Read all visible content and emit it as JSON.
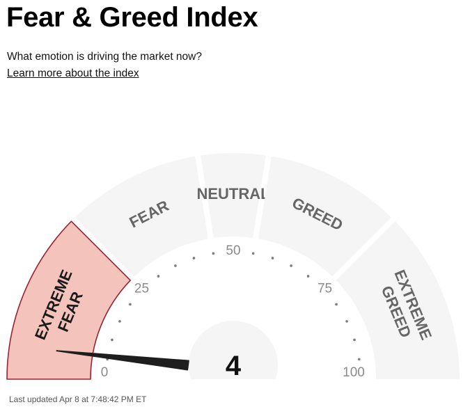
{
  "header": {
    "title": "Fear & Greed Index",
    "subtitle": "What emotion is driving the market now?",
    "learn_more_label": "Learn more about the index"
  },
  "chart_data": {
    "type": "gauge",
    "value": 4,
    "range": [
      0,
      100
    ],
    "tick_labels": [
      {
        "value": 0,
        "label": "0"
      },
      {
        "value": 25,
        "label": "25"
      },
      {
        "value": 50,
        "label": "50"
      },
      {
        "value": 75,
        "label": "75"
      },
      {
        "value": 100,
        "label": "100"
      }
    ],
    "segments": [
      {
        "lines": [
          "EXTREME",
          "FEAR"
        ],
        "from": 0,
        "to": 25,
        "active": true
      },
      {
        "lines": [
          "FEAR"
        ],
        "from": 25,
        "to": 45,
        "active": false
      },
      {
        "lines": [
          "NEUTRAL"
        ],
        "from": 45,
        "to": 55,
        "active": false
      },
      {
        "lines": [
          "GREED"
        ],
        "from": 55,
        "to": 75,
        "active": false
      },
      {
        "lines": [
          "EXTREME",
          "GREED"
        ],
        "from": 75,
        "to": 100,
        "active": false
      }
    ],
    "colors": {
      "active_fill": "#f4c3bb",
      "active_stroke": "#9b2230",
      "inactive_fill": "#f5f5f5",
      "label_color": "#666666",
      "needle": "#1e1e1e"
    }
  },
  "footer": {
    "last_updated": "Last updated Apr 8 at 7:48:42 PM ET"
  }
}
